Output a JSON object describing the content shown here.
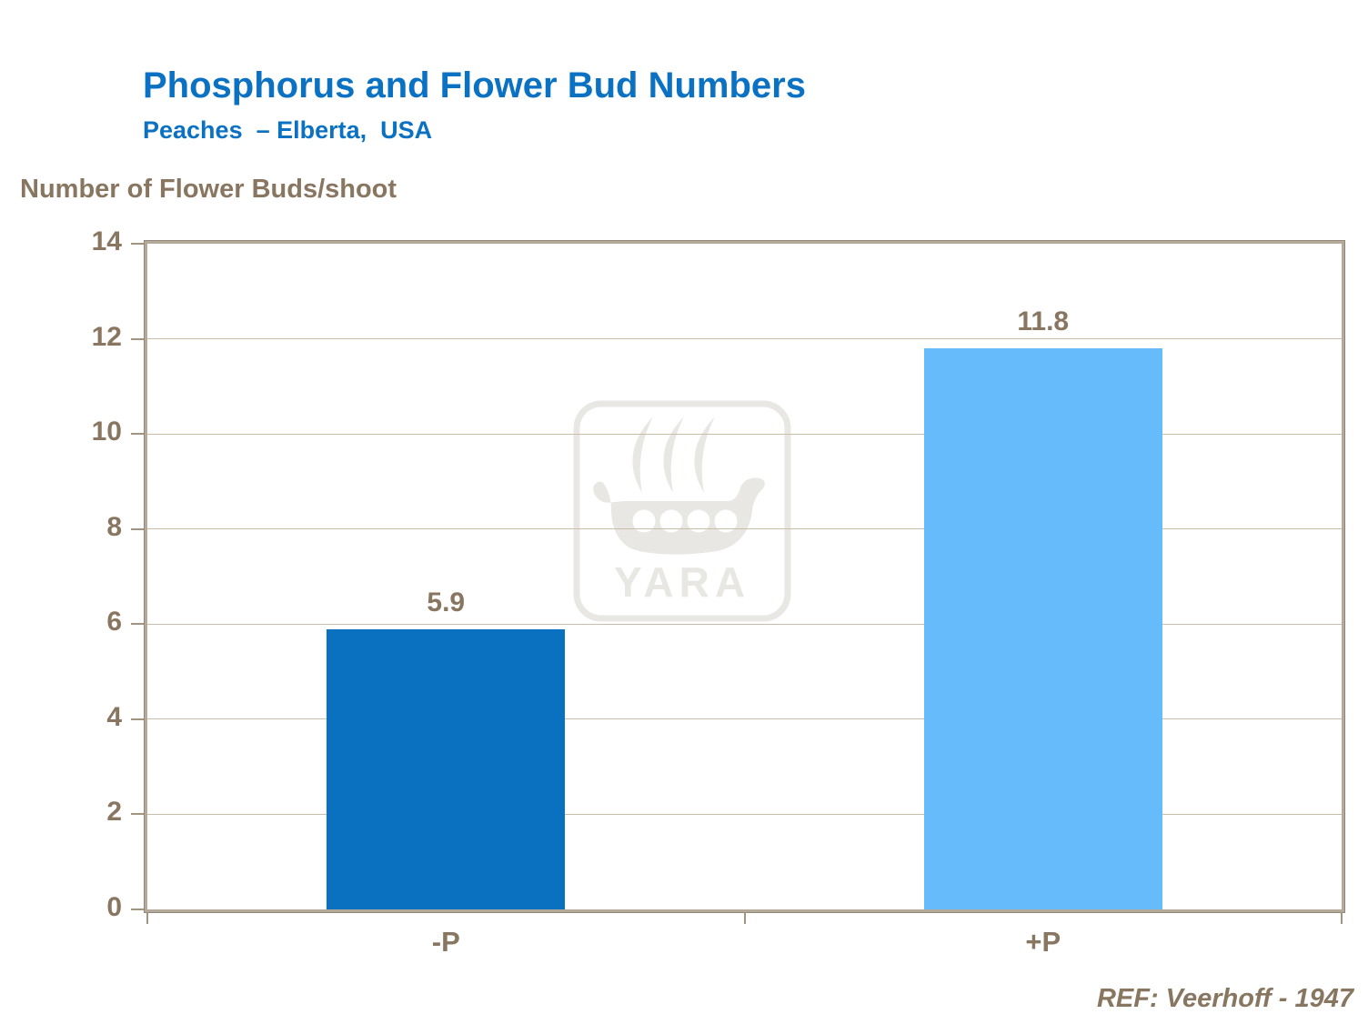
{
  "header": {
    "title": "Phosphorus and Flower Bud Numbers",
    "subtitle": "Peaches  – Elberta,  USA"
  },
  "axis_title": "Number of Flower Buds/shoot",
  "footer": {
    "reference": "REF: Veerhoff - 1947"
  },
  "watermark": {
    "brand": "YARA"
  },
  "colors": {
    "title_blue": "#0b71c2",
    "text_brown": "#887660",
    "bar_minus_p": "#0a70c0",
    "bar_plus_p": "#66bcfa",
    "gridline": "#c9bda9",
    "axis_border": "#b5aa99",
    "watermark_gray": "#e9e7e3"
  },
  "chart_data": {
    "type": "bar",
    "title": "Phosphorus and Flower Bud Numbers",
    "subtitle": "Peaches – Elberta, USA",
    "ylabel": "Number of Flower Buds/shoot",
    "xlabel": "",
    "categories": [
      "-P",
      "+P"
    ],
    "values": [
      5.9,
      11.8
    ],
    "bar_colors": [
      "#0a70c0",
      "#66bcfa"
    ],
    "data_labels": [
      "5.9",
      "11.8"
    ],
    "ylim": [
      0,
      14
    ],
    "yticks": [
      0,
      2,
      4,
      6,
      8,
      10,
      12,
      14
    ],
    "grid": "horizontal",
    "legend": "none",
    "reference": "REF: Veerhoff - 1947"
  }
}
